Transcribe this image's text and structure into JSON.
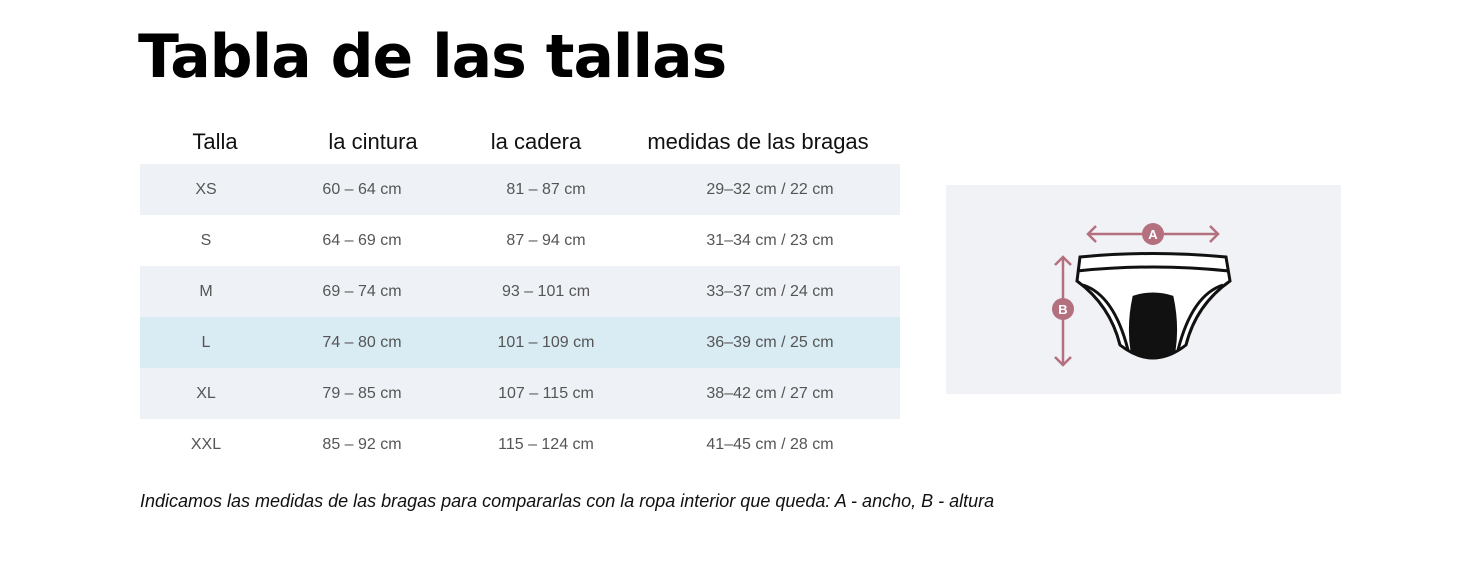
{
  "header": {
    "title": "Tabla de las tallas"
  },
  "table": {
    "columns": [
      "Talla",
      "la cintura",
      "la cadera",
      "medidas de las bragas"
    ],
    "rows": [
      [
        "XS",
        "60 – 64 cm",
        "81 – 87 cm",
        "29–32 cm / 22 cm"
      ],
      [
        "S",
        "64 – 69 cm",
        "87 – 94 cm",
        "31–34 cm / 23 cm"
      ],
      [
        "M",
        "69 – 74 cm",
        "93 – 101 cm",
        "33–37 cm / 24 cm"
      ],
      [
        "L",
        "74 – 80 cm",
        "101 – 109 cm",
        "36–39 cm / 25 cm"
      ],
      [
        "XL",
        "79 – 85 cm",
        "107 – 115 cm",
        "38–42 cm / 27 cm"
      ],
      [
        "XXL",
        "85 – 92 cm",
        "115 – 124 cm",
        "41–45 cm / 28 cm"
      ]
    ]
  },
  "diagram": {
    "label_a": "A",
    "label_b": "B"
  },
  "footnote": "Indicamos las medidas de las bragas para compararlas con la ropa interior que queda:  A - ancho, B - altura"
}
